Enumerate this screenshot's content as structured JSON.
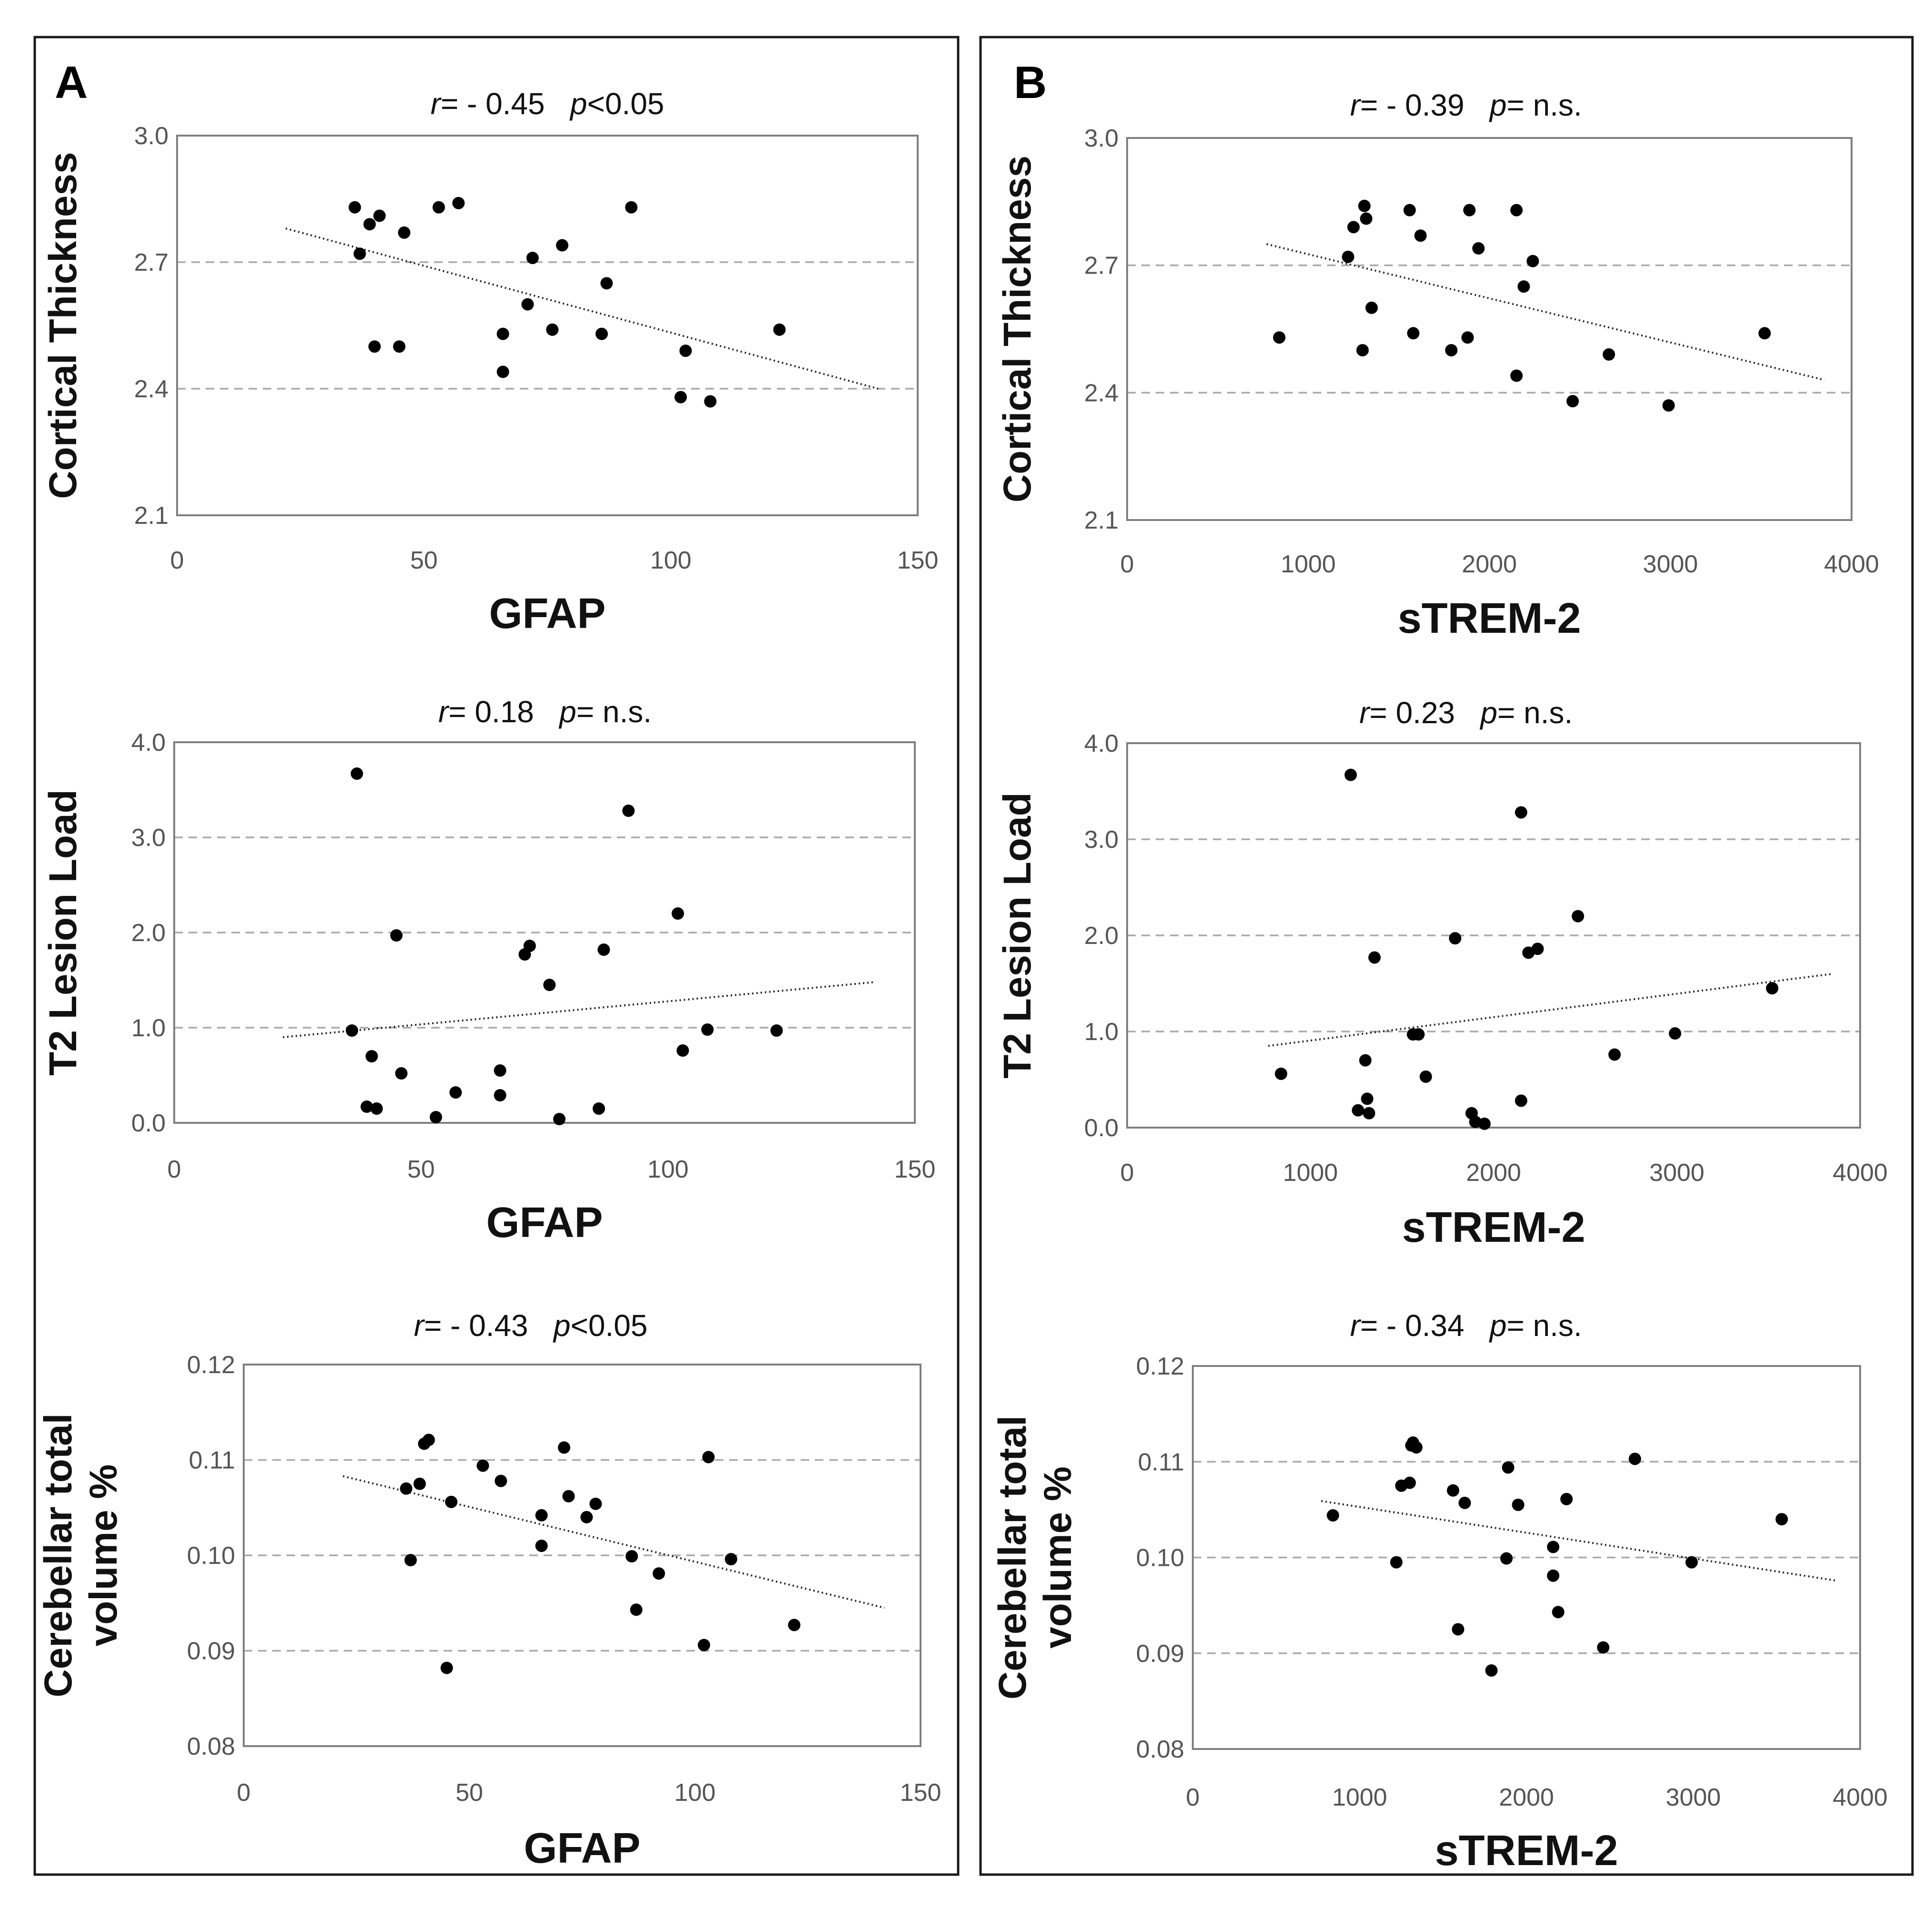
{
  "panels": [
    {
      "letter": "A"
    },
    {
      "letter": "B"
    }
  ],
  "chart_data": [
    {
      "type": "scatter",
      "panel": "A",
      "title": {
        "r_symbol": "r",
        "r_text": "= - 0.45",
        "p_symbol": "p",
        "p_text": "<0.05"
      },
      "xlabel": "GFAP",
      "ylabel": [
        "Cortical Thickness"
      ],
      "xlim": [
        0,
        150
      ],
      "ylim": [
        2.1,
        3.0
      ],
      "xticks": [
        "0",
        "50",
        "100",
        "150"
      ],
      "yticks": [
        "2.1",
        "2.4",
        "2.7",
        "3.0"
      ],
      "gridlines": [
        2.4,
        2.7
      ],
      "trendline": [
        [
          22,
          2.78
        ],
        [
          142,
          2.4
        ]
      ],
      "points": [
        [
          36,
          2.83
        ],
        [
          37,
          2.72
        ],
        [
          39,
          2.79
        ],
        [
          40,
          2.5
        ],
        [
          41,
          2.81
        ],
        [
          45,
          2.5
        ],
        [
          46,
          2.77
        ],
        [
          53,
          2.83
        ],
        [
          57,
          2.84
        ],
        [
          66,
          2.53
        ],
        [
          66,
          2.44
        ],
        [
          71,
          2.6
        ],
        [
          72,
          2.71
        ],
        [
          76,
          2.54
        ],
        [
          78,
          2.74
        ],
        [
          86,
          2.53
        ],
        [
          87,
          2.65
        ],
        [
          92,
          2.83
        ],
        [
          102,
          2.38
        ],
        [
          103,
          2.49
        ],
        [
          108,
          2.37
        ],
        [
          122,
          2.54
        ]
      ]
    },
    {
      "type": "scatter",
      "panel": "A",
      "title": {
        "r_symbol": "r",
        "r_text": "= 0.18",
        "p_symbol": "p",
        "p_text": "= n.s."
      },
      "xlabel": "GFAP",
      "ylabel": [
        "T2 Lesion Load"
      ],
      "xlim": [
        0,
        150
      ],
      "ylim": [
        0.0,
        4.0
      ],
      "xticks": [
        "0",
        "50",
        "100",
        "150"
      ],
      "yticks": [
        "0.0",
        "1.0",
        "2.0",
        "3.0",
        "4.0"
      ],
      "gridlines": [
        1.0,
        2.0,
        3.0
      ],
      "trendline": [
        [
          22,
          0.9
        ],
        [
          142,
          1.48
        ]
      ],
      "points": [
        [
          36,
          0.97
        ],
        [
          37,
          3.67
        ],
        [
          39,
          0.17
        ],
        [
          40,
          0.7
        ],
        [
          41,
          0.15
        ],
        [
          45,
          1.97
        ],
        [
          46,
          0.52
        ],
        [
          53,
          0.06
        ],
        [
          57,
          0.32
        ],
        [
          66,
          0.55
        ],
        [
          66,
          0.29
        ],
        [
          71,
          1.77
        ],
        [
          72,
          1.86
        ],
        [
          76,
          1.45
        ],
        [
          78,
          0.04
        ],
        [
          86,
          0.15
        ],
        [
          87,
          1.82
        ],
        [
          92,
          3.28
        ],
        [
          102,
          2.2
        ],
        [
          103,
          0.76
        ],
        [
          108,
          0.98
        ],
        [
          122,
          0.97
        ]
      ]
    },
    {
      "type": "scatter",
      "panel": "A",
      "title": {
        "r_symbol": "r",
        "r_text": "= - 0.43",
        "p_symbol": "p",
        "p_text": "<0.05"
      },
      "xlabel": "GFAP",
      "ylabel": [
        "Cerebellar total",
        "volume %"
      ],
      "xlim": [
        0,
        150
      ],
      "ylim": [
        0.08,
        0.12
      ],
      "xticks": [
        "0",
        "50",
        "100",
        "150"
      ],
      "yticks": [
        "0.08",
        "0.09",
        "0.10",
        "0.11",
        "0.12"
      ],
      "gridlines": [
        0.09,
        0.1,
        0.11
      ],
      "trendline": [
        [
          22,
          0.1083
        ],
        [
          142,
          0.0945
        ]
      ],
      "points": [
        [
          36,
          0.107
        ],
        [
          37,
          0.0995
        ],
        [
          39,
          0.1075
        ],
        [
          40,
          0.1117
        ],
        [
          41,
          0.1121
        ],
        [
          45,
          0.0882
        ],
        [
          46,
          0.1056
        ],
        [
          53,
          0.1094
        ],
        [
          57,
          0.1078
        ],
        [
          66,
          0.1042
        ],
        [
          66,
          0.101
        ],
        [
          71,
          0.1113
        ],
        [
          72,
          0.1062
        ],
        [
          76,
          0.104
        ],
        [
          78,
          0.1054
        ],
        [
          86,
          0.0999
        ],
        [
          87,
          0.0943
        ],
        [
          92,
          0.0981
        ],
        [
          102,
          0.0906
        ],
        [
          103,
          0.1103
        ],
        [
          108,
          0.0996
        ],
        [
          122,
          0.0927
        ]
      ]
    },
    {
      "type": "scatter",
      "panel": "B",
      "title": {
        "r_symbol": "r",
        "r_text": "= - 0.39",
        "p_symbol": "p",
        "p_text": "= n.s."
      },
      "xlabel": "sTREM-2",
      "ylabel": [
        "Cortical Thickness"
      ],
      "xlim": [
        0,
        4000
      ],
      "ylim": [
        2.1,
        3.0
      ],
      "xticks": [
        "0",
        "1000",
        "2000",
        "3000",
        "4000"
      ],
      "yticks": [
        "2.1",
        "2.4",
        "2.7",
        "3.0"
      ],
      "gridlines": [
        2.4,
        2.7
      ],
      "trendline": [
        [
          770,
          2.75
        ],
        [
          3850,
          2.43
        ]
      ],
      "points": [
        [
          840,
          2.53
        ],
        [
          1220,
          2.72
        ],
        [
          1250,
          2.79
        ],
        [
          1300,
          2.5
        ],
        [
          1310,
          2.84
        ],
        [
          1320,
          2.81
        ],
        [
          1350,
          2.6
        ],
        [
          1560,
          2.83
        ],
        [
          1580,
          2.54
        ],
        [
          1620,
          2.77
        ],
        [
          1790,
          2.5
        ],
        [
          1880,
          2.53
        ],
        [
          1890,
          2.83
        ],
        [
          1940,
          2.74
        ],
        [
          2150,
          2.44
        ],
        [
          2150,
          2.83
        ],
        [
          2190,
          2.65
        ],
        [
          2240,
          2.71
        ],
        [
          2460,
          2.38
        ],
        [
          2660,
          2.49
        ],
        [
          2990,
          2.37
        ],
        [
          3520,
          2.54
        ]
      ]
    },
    {
      "type": "scatter",
      "panel": "B",
      "title": {
        "r_symbol": "r",
        "r_text": "= 0.23",
        "p_symbol": "p",
        "p_text": "= n.s."
      },
      "xlabel": "sTREM-2",
      "ylabel": [
        "T2 Lesion Load"
      ],
      "xlim": [
        0,
        4000
      ],
      "ylim": [
        0.0,
        4.0
      ],
      "xticks": [
        "0",
        "1000",
        "2000",
        "3000",
        "4000"
      ],
      "yticks": [
        "0.0",
        "1.0",
        "2.0",
        "3.0",
        "4.0"
      ],
      "gridlines": [
        1.0,
        2.0,
        3.0
      ],
      "trendline": [
        [
          770,
          0.85
        ],
        [
          3850,
          1.6
        ]
      ],
      "points": [
        [
          840,
          0.56
        ],
        [
          1220,
          3.67
        ],
        [
          1260,
          0.18
        ],
        [
          1300,
          0.7
        ],
        [
          1310,
          0.3
        ],
        [
          1320,
          0.15
        ],
        [
          1350,
          1.77
        ],
        [
          1560,
          0.97
        ],
        [
          1590,
          0.97
        ],
        [
          1630,
          0.53
        ],
        [
          1790,
          1.97
        ],
        [
          1880,
          0.15
        ],
        [
          1900,
          0.06
        ],
        [
          1950,
          0.04
        ],
        [
          2150,
          3.28
        ],
        [
          2150,
          0.28
        ],
        [
          2190,
          1.82
        ],
        [
          2240,
          1.86
        ],
        [
          2460,
          2.2
        ],
        [
          2660,
          0.76
        ],
        [
          2990,
          0.98
        ],
        [
          3520,
          1.45
        ]
      ]
    },
    {
      "type": "scatter",
      "panel": "B",
      "title": {
        "r_symbol": "r",
        "r_text": "= - 0.34",
        "p_symbol": "p",
        "p_text": "= n.s."
      },
      "xlabel": "sTREM-2",
      "ylabel": [
        "Cerebellar total",
        "volume %"
      ],
      "xlim": [
        0,
        4000
      ],
      "ylim": [
        0.08,
        0.12
      ],
      "xticks": [
        "0",
        "1000",
        "2000",
        "3000",
        "4000"
      ],
      "yticks": [
        "0.08",
        "0.09",
        "0.10",
        "0.11",
        "0.12"
      ],
      "gridlines": [
        0.09,
        0.1,
        0.11
      ],
      "trendline": [
        [
          770,
          0.1059
        ],
        [
          3850,
          0.0976
        ]
      ],
      "points": [
        [
          840,
          0.1044
        ],
        [
          1220,
          0.0995
        ],
        [
          1250,
          0.1075
        ],
        [
          1300,
          0.1078
        ],
        [
          1310,
          0.1117
        ],
        [
          1320,
          0.112
        ],
        [
          1340,
          0.1115
        ],
        [
          1560,
          0.107
        ],
        [
          1590,
          0.0925
        ],
        [
          1630,
          0.1057
        ],
        [
          1790,
          0.0882
        ],
        [
          1880,
          0.0999
        ],
        [
          1890,
          0.1094
        ],
        [
          1950,
          0.1055
        ],
        [
          2160,
          0.1011
        ],
        [
          2160,
          0.0981
        ],
        [
          2190,
          0.0943
        ],
        [
          2240,
          0.1061
        ],
        [
          2460,
          0.0906
        ],
        [
          2650,
          0.1103
        ],
        [
          2990,
          0.0995
        ],
        [
          3530,
          0.104
        ]
      ]
    }
  ]
}
